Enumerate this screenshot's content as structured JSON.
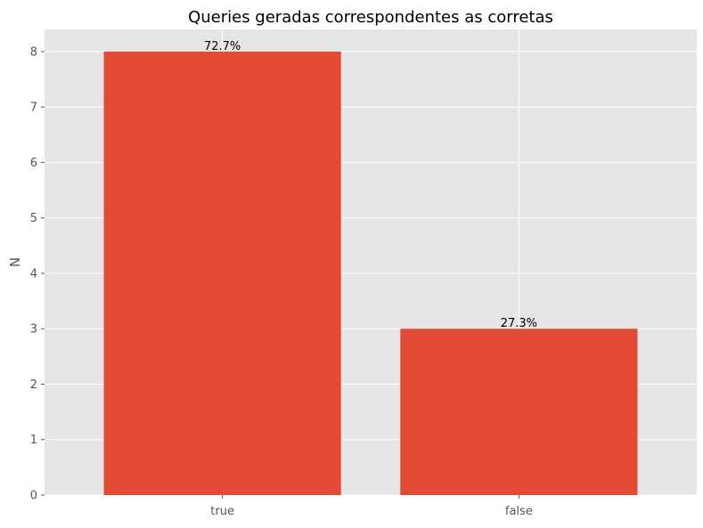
{
  "chart_data": {
    "type": "bar",
    "title": "Queries geradas correspondentes as corretas",
    "xlabel": "",
    "ylabel": "N",
    "categories": [
      "true",
      "false"
    ],
    "values": [
      8,
      3
    ],
    "data_labels": [
      "72.7%",
      "27.3%"
    ],
    "ylim": [
      0,
      8.4
    ],
    "yticks": [
      0,
      1,
      2,
      3,
      4,
      5,
      6,
      7,
      8
    ],
    "grid": true,
    "bar_color": "#E24A33",
    "background_color": "#E5E5E5",
    "grid_color": "#FFFFFF"
  }
}
